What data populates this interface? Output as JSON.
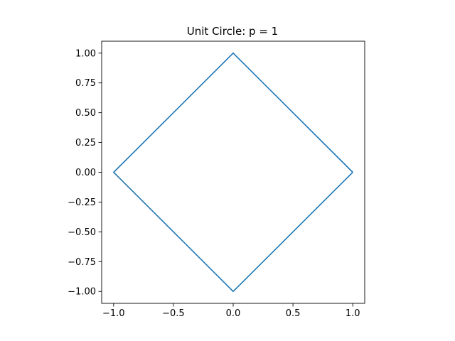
{
  "chart_data": {
    "type": "line",
    "title": "Unit Circle: p = 1",
    "xlabel": "",
    "ylabel": "",
    "xlim": [
      -1.1,
      1.1
    ],
    "ylim": [
      -1.1,
      1.1
    ],
    "aspect": "equal",
    "grid": false,
    "x_ticks": [
      -1.0,
      -0.5,
      0.0,
      0.5,
      1.0
    ],
    "x_tick_labels": [
      "−1.0",
      "−0.5",
      "0.0",
      "0.5",
      "1.0"
    ],
    "y_ticks": [
      1.0,
      0.75,
      0.5,
      0.25,
      0.0,
      -0.25,
      -0.5,
      -0.75,
      -1.0
    ],
    "y_tick_labels": [
      "1.00",
      "0.75",
      "0.50",
      "0.25",
      "0.00",
      "−0.25",
      "−0.50",
      "−0.75",
      "−1.00"
    ],
    "series": [
      {
        "color": "#1f77b4",
        "x": [
          1.0,
          0.0,
          -1.0,
          0.0,
          1.0
        ],
        "y": [
          0.0,
          1.0,
          0.0,
          -1.0,
          0.0
        ]
      }
    ]
  }
}
